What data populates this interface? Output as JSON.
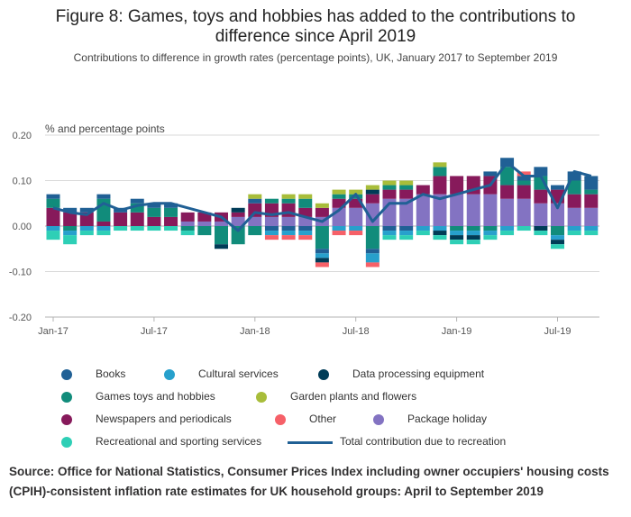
{
  "title_line1": "Figure 8: Games, toys and hobbies has added to the contributions to",
  "title_line2": "difference since April 2019",
  "subtitle": "Contributions to difference in growth rates (percentage points), UK, January 2017 to September 2019",
  "source": "Source: Office for National Statistics, Consumer Prices Index including owner occupiers' housing costs (CPIH)-consistent inflation rate estimates for UK household groups: April to September 2019",
  "chart_data": {
    "type": "bar",
    "stacked": true,
    "ylabel": "% and percentage points",
    "ylim": [
      -0.2,
      0.2
    ],
    "yticks": [
      "0.20",
      "0.10",
      "0.00",
      "-0.10",
      "-0.20"
    ],
    "ytick_values": [
      0.2,
      0.1,
      0.0,
      -0.1,
      -0.2
    ],
    "x_tick_labels": [
      "Jan-17",
      "Jul-17",
      "Jan-18",
      "Jul-18",
      "Jan-19",
      "Jul-19"
    ],
    "x_tick_indices": [
      0,
      6,
      12,
      18,
      24,
      30
    ],
    "categories": [
      "Jan-17",
      "Feb-17",
      "Mar-17",
      "Apr-17",
      "May-17",
      "Jun-17",
      "Jul-17",
      "Aug-17",
      "Sep-17",
      "Oct-17",
      "Nov-17",
      "Dec-17",
      "Jan-18",
      "Feb-18",
      "Mar-18",
      "Apr-18",
      "May-18",
      "Jun-18",
      "Jul-18",
      "Aug-18",
      "Sep-18",
      "Oct-18",
      "Nov-18",
      "Dec-18",
      "Jan-19",
      "Feb-19",
      "Mar-19",
      "Apr-19",
      "May-19",
      "Jun-19",
      "Jul-19",
      "Aug-19",
      "Sep-19"
    ],
    "grid": true,
    "legend_position": "bottom",
    "series": [
      {
        "name": "Package holiday",
        "color": "#8373c2",
        "values": [
          0,
          0,
          0,
          0,
          0,
          0,
          0,
          0,
          0.01,
          0.01,
          0.01,
          0.02,
          0.02,
          0.02,
          0.02,
          0.02,
          0.02,
          0.04,
          0.04,
          0.05,
          0.06,
          0.06,
          0.07,
          0.07,
          0.07,
          0.07,
          0.07,
          0.06,
          0.06,
          0.05,
          0.05,
          0.04,
          0.04
        ]
      },
      {
        "name": "Newspapers and periodicals",
        "color": "#871a5b",
        "values": [
          0.04,
          0.03,
          0.03,
          0.01,
          0.03,
          0.03,
          0.02,
          0.02,
          0.02,
          0.02,
          0.02,
          0.01,
          0.03,
          0.03,
          0.03,
          0.02,
          0.02,
          0.02,
          0.02,
          0.02,
          0.02,
          0.02,
          0.02,
          0.04,
          0.04,
          0.04,
          0.04,
          0.03,
          0.03,
          0.03,
          0.03,
          0.03,
          0.03
        ]
      },
      {
        "name": "Games toys and hobbies",
        "color": "#118c7b",
        "values": [
          0.02,
          -0.01,
          0,
          0.05,
          0,
          0.02,
          0.02,
          0.02,
          -0.01,
          -0.02,
          -0.04,
          -0.04,
          -0.02,
          0.01,
          0.01,
          0.02,
          -0.05,
          0.01,
          0.01,
          -0.05,
          0.01,
          0.01,
          0,
          0.02,
          -0.01,
          -0.01,
          -0.01,
          0.04,
          0.01,
          0.03,
          -0.02,
          0.03,
          0.01
        ]
      },
      {
        "name": "Books",
        "color": "#206095",
        "values": [
          0.01,
          0.01,
          0.01,
          0.01,
          0.01,
          0.01,
          0.01,
          0.01,
          0,
          0,
          0,
          0,
          0.01,
          -0.01,
          -0.01,
          -0.01,
          -0.01,
          0,
          0,
          -0.01,
          -0.01,
          -0.01,
          0,
          0,
          0,
          0,
          0.01,
          0.02,
          0.01,
          0.02,
          0.01,
          0.02,
          0.03
        ]
      },
      {
        "name": "Cultural services",
        "color": "#27a0cc",
        "values": [
          -0.01,
          -0.01,
          -0.01,
          -0.01,
          0,
          0,
          0,
          0,
          0,
          0,
          0,
          0,
          0,
          -0.01,
          -0.01,
          -0.01,
          -0.01,
          -0.01,
          -0.01,
          -0.02,
          -0.01,
          -0.01,
          -0.01,
          -0.01,
          -0.01,
          -0.01,
          -0.01,
          -0.01,
          0,
          0,
          -0.01,
          -0.01,
          -0.01
        ]
      },
      {
        "name": "Data processing equipment",
        "color": "#003c57",
        "values": [
          0,
          0,
          0,
          0,
          0,
          0,
          0,
          0,
          0,
          0,
          -0.01,
          0.01,
          0,
          0,
          0,
          0,
          -0.01,
          0,
          0,
          0.01,
          0,
          0,
          0,
          -0.01,
          -0.01,
          -0.01,
          0,
          0,
          0,
          -0.01,
          -0.01,
          0,
          0
        ]
      },
      {
        "name": "Garden plants and flowers",
        "color": "#a8bd3a",
        "values": [
          0,
          0,
          0,
          0,
          0,
          0,
          0,
          0,
          0,
          0,
          0,
          0,
          0.01,
          0,
          0.01,
          0.01,
          0.01,
          0.01,
          0.01,
          0.01,
          0.01,
          0.01,
          0,
          0.01,
          0,
          0,
          0,
          0,
          0,
          0,
          0,
          0,
          0
        ]
      },
      {
        "name": "Other",
        "color": "#f66068",
        "values": [
          0,
          0,
          0,
          0,
          0,
          0,
          0,
          0,
          0,
          0,
          0,
          0,
          0,
          -0.01,
          -0.01,
          -0.01,
          -0.01,
          -0.01,
          -0.01,
          -0.01,
          0,
          0,
          0,
          0,
          0,
          0,
          0,
          0,
          0.01,
          0,
          0,
          0,
          0
        ]
      },
      {
        "name": "Recreational and sporting services",
        "color": "#2ecfb6",
        "values": [
          -0.02,
          -0.02,
          -0.01,
          -0.01,
          -0.01,
          -0.01,
          -0.01,
          -0.01,
          -0.01,
          0,
          0,
          0,
          0,
          0,
          0,
          0,
          0,
          0,
          0,
          0,
          -0.01,
          -0.01,
          -0.01,
          -0.01,
          -0.01,
          -0.01,
          -0.01,
          -0.01,
          -0.01,
          -0.01,
          -0.01,
          -0.01,
          -0.01
        ]
      }
    ],
    "line": {
      "name": "Total contribution due to recreation",
      "color": "#206095",
      "values": [
        0.04,
        0.03,
        0.025,
        0.05,
        0.035,
        0.045,
        0.05,
        0.05,
        0.04,
        0.03,
        0.02,
        -0.01,
        0.03,
        0.025,
        0.03,
        0.02,
        0.01,
        0.035,
        0.07,
        0.01,
        0.05,
        0.05,
        0.07,
        0.06,
        0.07,
        0.08,
        0.09,
        0.14,
        0.11,
        0.11,
        0.04,
        0.12,
        0.11
      ]
    }
  },
  "legend": [
    {
      "label": "Books",
      "color": "#206095",
      "kind": "dot"
    },
    {
      "label": "Cultural services",
      "color": "#27a0cc",
      "kind": "dot"
    },
    {
      "label": "Data processing equipment",
      "color": "#003c57",
      "kind": "dot"
    },
    {
      "label": "Games toys and hobbies",
      "color": "#118c7b",
      "kind": "dot"
    },
    {
      "label": "Garden plants and flowers",
      "color": "#a8bd3a",
      "kind": "dot"
    },
    {
      "label": "Newspapers and periodicals",
      "color": "#871a5b",
      "kind": "dot"
    },
    {
      "label": "Other",
      "color": "#f66068",
      "kind": "dot"
    },
    {
      "label": "Package holiday",
      "color": "#8373c2",
      "kind": "dot"
    },
    {
      "label": "Recreational and sporting services",
      "color": "#2ecfb6",
      "kind": "dot"
    },
    {
      "label": "Total contribution due to recreation",
      "color": "#206095",
      "kind": "line"
    }
  ]
}
